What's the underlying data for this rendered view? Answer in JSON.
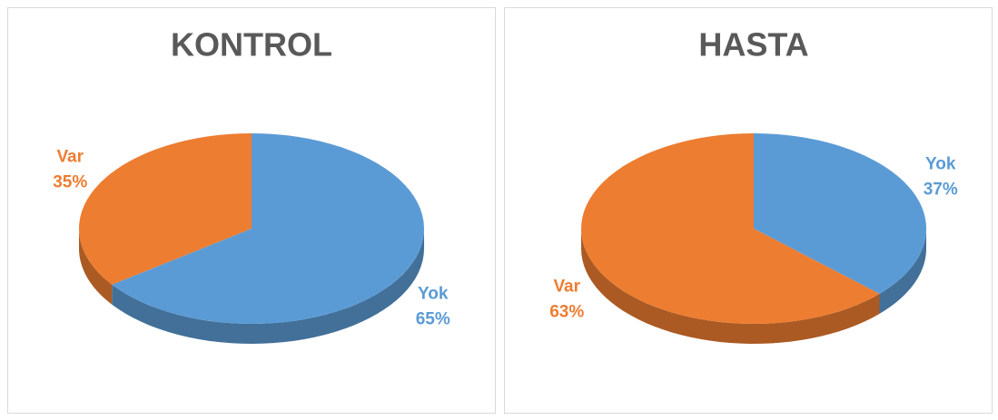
{
  "chart_data": [
    {
      "type": "pie",
      "title": "KONTROL",
      "categories": [
        "Yok",
        "Var"
      ],
      "values": [
        65,
        35
      ],
      "value_labels": [
        "65%",
        "35%"
      ],
      "colors": [
        "#5b9bd5",
        "#ed7d31"
      ]
    },
    {
      "type": "pie",
      "title": "HASTA",
      "categories": [
        "Yok",
        "Var"
      ],
      "values": [
        37,
        63
      ],
      "value_labels": [
        "37%",
        "63%"
      ],
      "colors": [
        "#5b9bd5",
        "#ed7d31"
      ]
    }
  ]
}
